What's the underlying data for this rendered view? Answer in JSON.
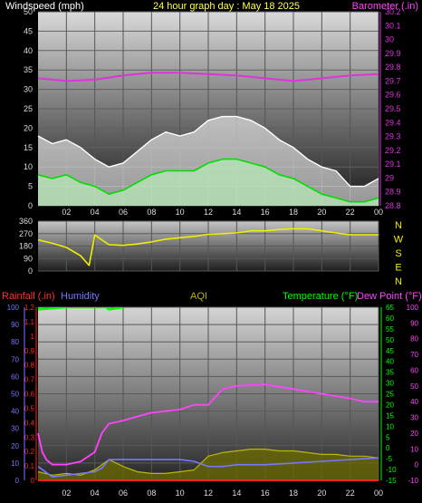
{
  "header": {
    "left_label": "Windspeed (mph)",
    "center_label": "24 hour graph day : May 18 2025",
    "right_label": "Barometer (.in)"
  },
  "colors": {
    "background": "#000000",
    "wind_gust": "#ffffff",
    "wind_avg_fill": "#b9ebb9",
    "wind_avg_line": "#00dd00",
    "barometer": "#dd33dd",
    "direction": "#eeee00",
    "rain": "#ff2222",
    "humidity": "#7777ff",
    "aqi": "#b8b800",
    "temperature": "#00ff00",
    "dewpoint": "#ff44ff",
    "axis_tick": "#dddddd"
  },
  "chart_data": [
    {
      "type": "line",
      "title": "24 hour graph day : May 18 2025",
      "x_ticks": [
        "02",
        "04",
        "06",
        "08",
        "10",
        "12",
        "14",
        "16",
        "18",
        "20",
        "22",
        "00"
      ],
      "y_left": {
        "label": "Windspeed (mph)",
        "range": [
          0,
          50
        ],
        "ticks": [
          "0",
          "5",
          "10",
          "15",
          "20",
          "25",
          "30",
          "35",
          "40",
          "45",
          "50"
        ]
      },
      "y_right": {
        "label": "Barometer (.in)",
        "range": [
          28.8,
          30.2
        ],
        "ticks": [
          "28.8",
          "28.9",
          "29",
          "29.1",
          "29.2",
          "29.3",
          "29.4",
          "29.5",
          "29.6",
          "29.7",
          "29.8",
          "29.9",
          "30",
          "30.1",
          "30.2"
        ]
      },
      "grid": true,
      "series": [
        {
          "name": "Barometer (.in)",
          "axis": "right",
          "x": [
            0,
            2,
            4,
            6,
            8,
            10,
            12,
            14,
            16,
            18,
            20,
            22,
            24
          ],
          "values": [
            29.72,
            29.7,
            29.71,
            29.74,
            29.76,
            29.76,
            29.75,
            29.74,
            29.72,
            29.7,
            29.72,
            29.74,
            29.75
          ]
        },
        {
          "name": "Wind gust",
          "axis": "left",
          "x": [
            0,
            1,
            2,
            3,
            4,
            5,
            6,
            7,
            8,
            9,
            10,
            11,
            12,
            13,
            14,
            15,
            16,
            17,
            18,
            19,
            20,
            21,
            22,
            23,
            24
          ],
          "values": [
            18,
            16,
            17,
            15,
            12,
            10,
            11,
            14,
            17,
            19,
            18,
            19,
            22,
            23,
            23,
            22,
            20,
            17,
            15,
            12,
            10,
            9,
            5,
            5,
            7
          ]
        },
        {
          "name": "Wind average",
          "axis": "left",
          "x": [
            0,
            1,
            2,
            3,
            4,
            5,
            6,
            7,
            8,
            9,
            10,
            11,
            12,
            13,
            14,
            15,
            16,
            17,
            18,
            19,
            20,
            21,
            22,
            23,
            24
          ],
          "values": [
            8,
            7,
            8,
            6,
            5,
            3,
            4,
            6,
            8,
            9,
            9,
            9,
            11,
            12,
            12,
            11,
            10,
            8,
            7,
            5,
            3,
            2,
            1,
            1,
            2
          ]
        }
      ]
    },
    {
      "type": "line",
      "y_left": {
        "range": [
          0,
          360
        ],
        "ticks": [
          "0",
          "90",
          "180",
          "270",
          "360"
        ]
      },
      "compass_labels": [
        "N",
        "W",
        "S",
        "E",
        "N"
      ],
      "grid": true,
      "series": [
        {
          "name": "Wind direction",
          "x": [
            0,
            1,
            2,
            3,
            3.6,
            4,
            5,
            6,
            7,
            8,
            9,
            10,
            11,
            12,
            13,
            14,
            15,
            16,
            17,
            18,
            19,
            20,
            21,
            22,
            23,
            24
          ],
          "values": [
            225,
            200,
            170,
            110,
            40,
            260,
            190,
            185,
            195,
            210,
            230,
            240,
            250,
            265,
            270,
            275,
            290,
            290,
            300,
            305,
            305,
            290,
            275,
            262,
            262,
            262
          ]
        }
      ]
    },
    {
      "type": "line",
      "y_left": {
        "label": "Humidity",
        "range": [
          0,
          100
        ],
        "ticks": [
          "0",
          "10",
          "20",
          "30",
          "40",
          "50",
          "60",
          "70",
          "80",
          "90",
          "100"
        ]
      },
      "y_left_rain": {
        "label": "Rainfall (.in)",
        "range": [
          0,
          1.2
        ],
        "ticks": [
          "0",
          "0.1",
          "0.2",
          "0.3",
          "0.4",
          "0.5",
          "0.6",
          "0.7",
          "0.8",
          "0.9",
          "1",
          "1.1",
          "1.2"
        ]
      },
      "y_right": {
        "label": "Temperature (°F)",
        "range": [
          -15,
          65
        ],
        "ticks": [
          "-15",
          "-10",
          "-5",
          "0",
          "5",
          "10",
          "15",
          "20",
          "25",
          "30",
          "35",
          "40",
          "45",
          "50",
          "55",
          "60",
          "65"
        ]
      },
      "y_right_dew": {
        "label": "Dew Point (°F)",
        "range": [
          -10,
          100
        ],
        "ticks": [
          "-10",
          "0",
          "10",
          "20",
          "30",
          "40",
          "50",
          "60",
          "70",
          "80",
          "90",
          "100"
        ]
      },
      "aqi_label": "AQI",
      "grid": true,
      "series": [
        {
          "name": "Temperature (°F)",
          "axis": "right",
          "x": [
            0,
            2,
            3,
            4,
            4.8,
            5,
            6
          ],
          "values": [
            64,
            65,
            68,
            70,
            66,
            64,
            66
          ]
        },
        {
          "name": "Dew Point (°F)",
          "axis": "right_dew",
          "x": [
            0,
            0.3,
            0.6,
            1,
            2,
            3,
            4,
            4.5,
            5,
            6,
            8,
            10,
            11,
            12,
            13,
            14,
            16,
            18,
            20,
            22,
            23,
            24
          ],
          "values": [
            20,
            8,
            3,
            0,
            0,
            2,
            8,
            20,
            26,
            28,
            33,
            35,
            38,
            38,
            48,
            50,
            51,
            48,
            45,
            42,
            40,
            40
          ]
        },
        {
          "name": "Humidity",
          "axis": "left",
          "x": [
            0,
            1,
            2,
            3,
            4,
            4.5,
            5,
            6,
            8,
            10,
            11,
            12,
            13,
            14,
            16,
            18,
            20,
            22,
            24
          ],
          "values": [
            8,
            2,
            3,
            4,
            5,
            7,
            12,
            12,
            12,
            12,
            11,
            8,
            8,
            9,
            9,
            10,
            11,
            12,
            13
          ]
        },
        {
          "name": "Rainfall (.in)",
          "axis": "left_rain",
          "x": [
            0,
            24
          ],
          "values": [
            0,
            0
          ]
        },
        {
          "name": "AQI",
          "axis": "left",
          "x": [
            0,
            1,
            2,
            3,
            4,
            5,
            6,
            7,
            8,
            9,
            10,
            11,
            12,
            13,
            14,
            15,
            16,
            17,
            18,
            19,
            20,
            21,
            22,
            23,
            24
          ],
          "values": [
            5,
            3,
            4,
            3,
            6,
            12,
            8,
            5,
            4,
            4,
            5,
            6,
            14,
            16,
            17,
            18,
            18,
            17,
            17,
            16,
            15,
            15,
            14,
            14,
            13
          ]
        }
      ]
    }
  ]
}
